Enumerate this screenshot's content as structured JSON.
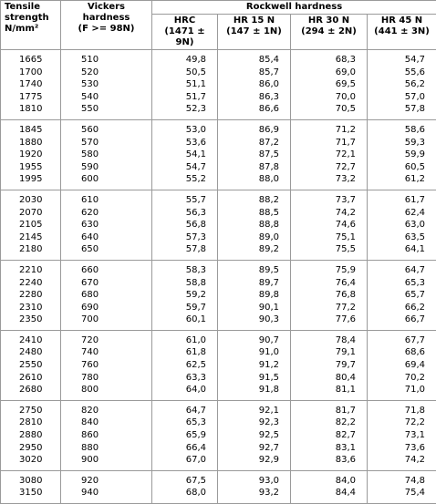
{
  "table": {
    "header": {
      "tensile": {
        "title": "Tensile strength",
        "unit": "N/mm²"
      },
      "vickers": {
        "title": "Vickers hardness",
        "load": "(F >= 98N)"
      },
      "rockwell": "Rockwell hardness",
      "scales": [
        {
          "name": "HRC",
          "load": "(1471 ± 9N)"
        },
        {
          "name": "HR 15 N",
          "load": "(147 ± 1N)"
        },
        {
          "name": "HR 30 N",
          "load": "(294 ± 2N)"
        },
        {
          "name": "HR 45 N",
          "load": "(441 ± 3N)"
        }
      ]
    },
    "groups": [
      [
        [
          "1665",
          "510",
          "49,8",
          "85,4",
          "68,3",
          "54,7"
        ],
        [
          "1700",
          "520",
          "50,5",
          "85,7",
          "69,0",
          "55,6"
        ],
        [
          "1740",
          "530",
          "51,1",
          "86,0",
          "69,5",
          "56,2"
        ],
        [
          "1775",
          "540",
          "51,7",
          "86,3",
          "70,0",
          "57,0"
        ],
        [
          "1810",
          "550",
          "52,3",
          "86,6",
          "70,5",
          "57,8"
        ]
      ],
      [
        [
          "1845",
          "560",
          "53,0",
          "86,9",
          "71,2",
          "58,6"
        ],
        [
          "1880",
          "570",
          "53,6",
          "87,2",
          "71,7",
          "59,3"
        ],
        [
          "1920",
          "580",
          "54,1",
          "87,5",
          "72,1",
          "59,9"
        ],
        [
          "1955",
          "590",
          "54,7",
          "87,8",
          "72,7",
          "60,5"
        ],
        [
          "1995",
          "600",
          "55,2",
          "88,0",
          "73,2",
          "61,2"
        ]
      ],
      [
        [
          "2030",
          "610",
          "55,7",
          "88,2",
          "73,7",
          "61,7"
        ],
        [
          "2070",
          "620",
          "56,3",
          "88,5",
          "74,2",
          "62,4"
        ],
        [
          "2105",
          "630",
          "56,8",
          "88,8",
          "74,6",
          "63,0"
        ],
        [
          "2145",
          "640",
          "57,3",
          "89,0",
          "75,1",
          "63,5"
        ],
        [
          "2180",
          "650",
          "57,8",
          "89,2",
          "75,5",
          "64,1"
        ]
      ],
      [
        [
          "2210",
          "660",
          "58,3",
          "89,5",
          "75,9",
          "64,7"
        ],
        [
          "2240",
          "670",
          "58,8",
          "89,7",
          "76,4",
          "65,3"
        ],
        [
          "2280",
          "680",
          "59,2",
          "89,8",
          "76,8",
          "65,7"
        ],
        [
          "2310",
          "690",
          "59,7",
          "90,1",
          "77,2",
          "66,2"
        ],
        [
          "2350",
          "700",
          "60,1",
          "90,3",
          "77,6",
          "66,7"
        ]
      ],
      [
        [
          "2410",
          "720",
          "61,0",
          "90,7",
          "78,4",
          "67,7"
        ],
        [
          "2480",
          "740",
          "61,8",
          "91,0",
          "79,1",
          "68,6"
        ],
        [
          "2550",
          "760",
          "62,5",
          "91,2",
          "79,7",
          "69,4"
        ],
        [
          "2610",
          "780",
          "63,3",
          "91,5",
          "80,4",
          "70,2"
        ],
        [
          "2680",
          "800",
          "64,0",
          "91,8",
          "81,1",
          "71,0"
        ]
      ],
      [
        [
          "2750",
          "820",
          "64,7",
          "92,1",
          "81,7",
          "71,8"
        ],
        [
          "2810",
          "840",
          "65,3",
          "92,3",
          "82,2",
          "72,2"
        ],
        [
          "2880",
          "860",
          "65,9",
          "92,5",
          "82,7",
          "73,1"
        ],
        [
          "2950",
          "880",
          "66,4",
          "92,7",
          "83,1",
          "73,6"
        ],
        [
          "3020",
          "900",
          "67,0",
          "92,9",
          "83,6",
          "74,2"
        ]
      ],
      [
        [
          "3080",
          "920",
          "67,5",
          "93,0",
          "84,0",
          "74,8"
        ],
        [
          "3150",
          "940",
          "68,0",
          "93,2",
          "84,4",
          "75,4"
        ]
      ]
    ]
  }
}
